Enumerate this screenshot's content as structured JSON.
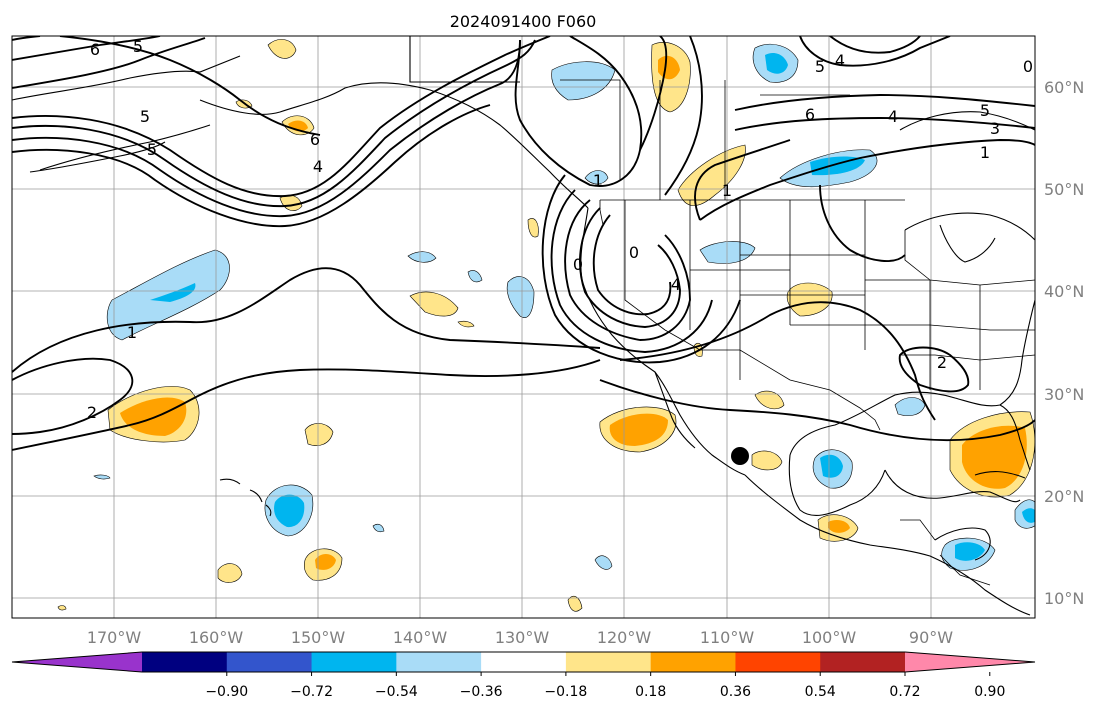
{
  "title": "2024091400 F060",
  "x_ticks": [
    "170°W",
    "160°W",
    "150°W",
    "140°W",
    "130°W",
    "120°W",
    "110°W",
    "100°W",
    "90°W"
  ],
  "y_ticks": [
    "60°N",
    "50°N",
    "40°N",
    "30°N",
    "20°N",
    "10°N"
  ],
  "colorbar": {
    "ticks": [
      "−0.90",
      "−0.72",
      "−0.54",
      "−0.36",
      "−0.18",
      "0.18",
      "0.36",
      "0.54",
      "0.72",
      "0.90"
    ],
    "colors": [
      "#9933cc",
      "#000080",
      "#3355cc",
      "#00b5ef",
      "#a9dcf7",
      "#ffffff",
      "#ffe58a",
      "#ffa200",
      "#ff4400",
      "#b22222",
      "#ff88aa"
    ]
  },
  "contour_labels": [
    "5",
    "6",
    "5",
    "6",
    "4",
    "5",
    "1",
    "2",
    "0",
    "1",
    "4",
    "1",
    "0",
    "4",
    "5",
    "4",
    "6",
    "5",
    "3",
    "1",
    "2",
    "0"
  ],
  "marker": "observation point"
}
